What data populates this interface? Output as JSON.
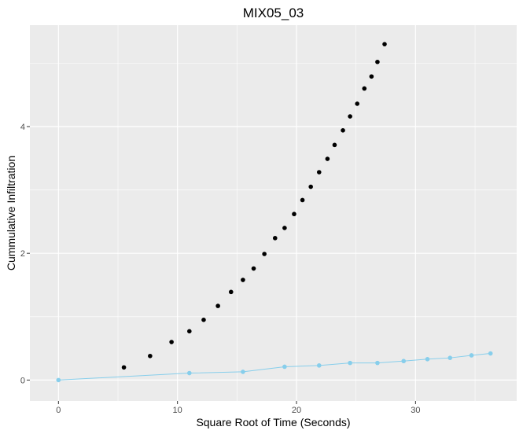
{
  "chart_data": {
    "type": "scatter",
    "title": "MIX05_03",
    "xlabel": "Square Root of Time (Seconds)",
    "ylabel": "Cummulative Infiltration",
    "xlim": [
      -2.4,
      38.5
    ],
    "ylim": [
      -0.33,
      5.6
    ],
    "x_ticks": [
      0,
      10,
      20,
      30
    ],
    "y_ticks": [
      0,
      2,
      4
    ],
    "grid": true,
    "panel_background": "#EBEBEB",
    "series": [
      {
        "color": "#000000",
        "marker": "point",
        "line": false,
        "x": [
          5.5,
          7.7,
          9.5,
          11.0,
          12.2,
          13.4,
          14.5,
          15.5,
          16.4,
          17.3,
          18.2,
          19.0,
          19.8,
          20.5,
          21.2,
          21.9,
          22.6,
          23.2,
          23.9,
          24.5,
          25.1,
          25.7,
          26.3,
          26.8,
          27.4
        ],
        "y": [
          0.2,
          0.38,
          0.6,
          0.77,
          0.95,
          1.17,
          1.39,
          1.58,
          1.76,
          1.99,
          2.24,
          2.4,
          2.62,
          2.84,
          3.05,
          3.28,
          3.49,
          3.71,
          3.94,
          4.16,
          4.36,
          4.6,
          4.79,
          5.02,
          5.3
        ]
      },
      {
        "color": "#87CEEB",
        "marker": "point",
        "line": true,
        "x": [
          0,
          11.0,
          15.5,
          19.0,
          21.9,
          24.5,
          26.8,
          29.0,
          31.0,
          32.9,
          34.7,
          36.3
        ],
        "y": [
          0,
          0.11,
          0.13,
          0.21,
          0.23,
          0.27,
          0.27,
          0.3,
          0.33,
          0.35,
          0.39,
          0.42
        ]
      }
    ]
  }
}
